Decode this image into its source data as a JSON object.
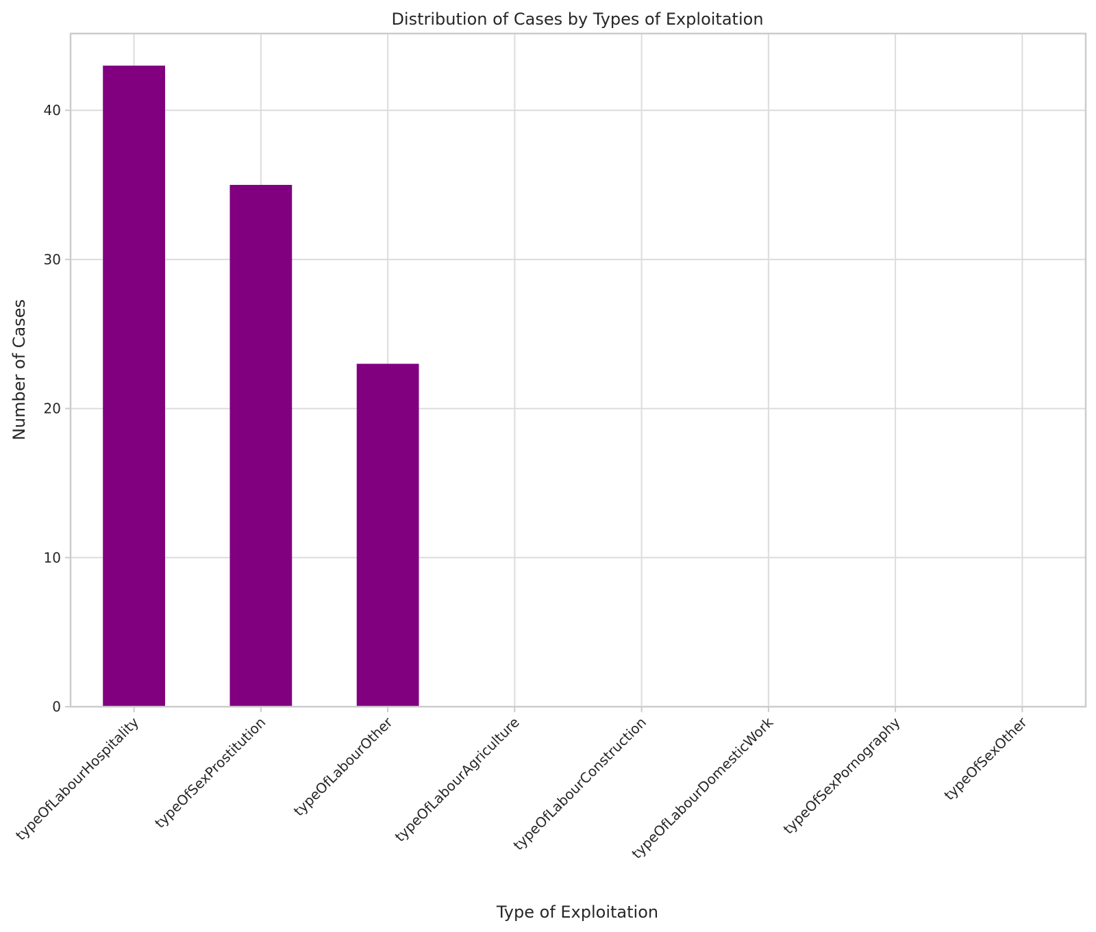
{
  "chart_data": {
    "type": "bar",
    "title": "Distribution of Cases by Types of Exploitation",
    "xlabel": "Type of Exploitation",
    "ylabel": "Number of Cases",
    "categories": [
      "typeOfLabourHospitality",
      "typeOfSexProstitution",
      "typeOfLabourOther",
      "typeOfLabourAgriculture",
      "typeOfLabourConstruction",
      "typeOfLabourDomesticWork",
      "typeOfSexPornography",
      "typeOfSexOther"
    ],
    "values": [
      43,
      35,
      23,
      0,
      0,
      0,
      0,
      0
    ],
    "ylim": [
      0,
      45.15
    ],
    "yticks": [
      0,
      10,
      20,
      30,
      40
    ],
    "grid": true,
    "bar_color": "#800080",
    "xtick_rotation": 45
  }
}
